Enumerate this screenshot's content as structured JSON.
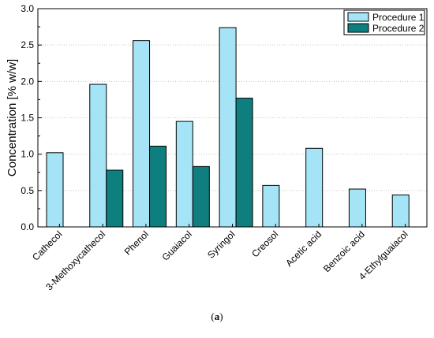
{
  "chart_data": {
    "type": "bar",
    "categories": [
      "Cathecol",
      "3-Methoxycathecol",
      "Phenol",
      "Guaiacol",
      "Syringol",
      "Creosol",
      "Acetic acid",
      "Benzoic acid",
      "4-Ethylguaiacol"
    ],
    "series": [
      {
        "name": "Procedure 1",
        "color": "#a5e4f7",
        "values": [
          1.02,
          1.96,
          2.56,
          1.45,
          2.74,
          0.57,
          1.08,
          0.52,
          0.44
        ]
      },
      {
        "name": "Procedure 2",
        "color": "#0e7f7e",
        "values": [
          null,
          0.78,
          1.11,
          0.83,
          1.77,
          null,
          null,
          null,
          null
        ]
      }
    ],
    "xlabel": "",
    "ylabel": "Concentration [% w/w]",
    "ylim": [
      0,
      3.0
    ],
    "yticks": [
      "0.0",
      "0.5",
      "1.0",
      "1.5",
      "2.0",
      "2.5",
      "3.0"
    ],
    "grid": true,
    "legend_position": "top-right"
  },
  "caption": {
    "open": "(",
    "label": "a",
    "close": ")"
  }
}
